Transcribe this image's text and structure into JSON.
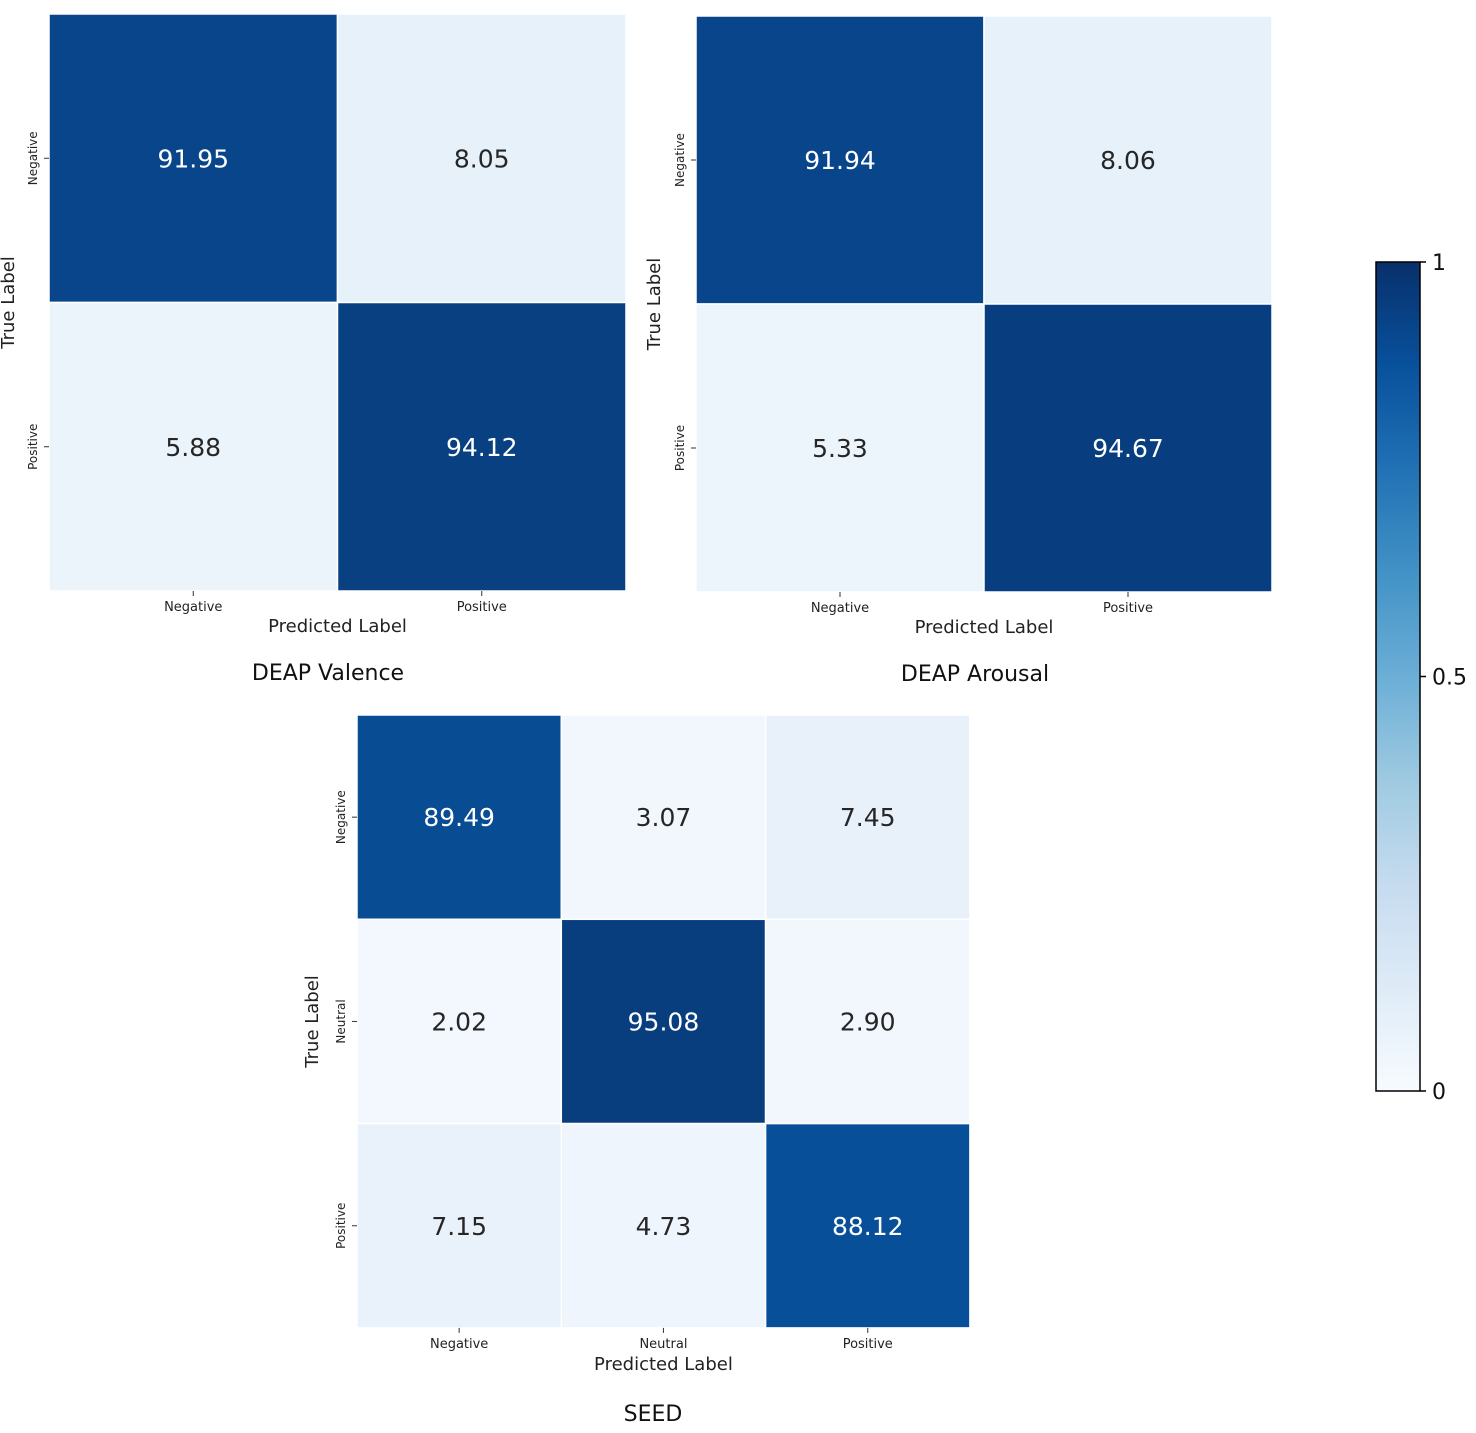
{
  "chart_data": [
    {
      "type": "heatmap",
      "title": "DEAP Valence",
      "xlabel": "Predicted Label",
      "ylabel": "True Label",
      "x_categories": [
        "Negative",
        "Positive"
      ],
      "y_categories": [
        "Negative",
        "Positive"
      ],
      "values": [
        [
          91.95,
          8.05
        ],
        [
          5.88,
          94.12
        ]
      ],
      "value_labels": [
        [
          "91.95",
          "8.05"
        ],
        [
          "5.88",
          "94.12"
        ]
      ]
    },
    {
      "type": "heatmap",
      "title": "DEAP Arousal",
      "xlabel": "Predicted Label",
      "ylabel": "True Label",
      "x_categories": [
        "Negative",
        "Positive"
      ],
      "y_categories": [
        "Negative",
        "Positive"
      ],
      "values": [
        [
          91.94,
          8.06
        ],
        [
          5.33,
          94.67
        ]
      ],
      "value_labels": [
        [
          "91.94",
          "8.06"
        ],
        [
          "5.33",
          "94.67"
        ]
      ]
    },
    {
      "type": "heatmap",
      "title": "SEED",
      "xlabel": "Predicted Label",
      "ylabel": "True Label",
      "x_categories": [
        "Negative",
        "Neutral",
        "Positive"
      ],
      "y_categories": [
        "Negative",
        "Neutral",
        "Positive"
      ],
      "values": [
        [
          89.49,
          3.07,
          7.45
        ],
        [
          2.02,
          95.08,
          2.9
        ],
        [
          7.15,
          4.73,
          88.12
        ]
      ],
      "value_labels": [
        [
          "89.49",
          "3.07",
          "7.45"
        ],
        [
          "2.02",
          "95.08",
          "2.90"
        ],
        [
          "7.15",
          "4.73",
          "88.12"
        ]
      ]
    }
  ],
  "colorbar": {
    "range": [
      0,
      1
    ],
    "ticks": [
      0,
      0.5,
      1
    ],
    "tick_labels": [
      "0",
      "0.5",
      "1"
    ],
    "colormap": "Blues",
    "colors": [
      "#f7fbff",
      "#deebf7",
      "#c6dbef",
      "#9ecae1",
      "#6baed6",
      "#4292c6",
      "#2171b5",
      "#08519c",
      "#08306b"
    ]
  }
}
